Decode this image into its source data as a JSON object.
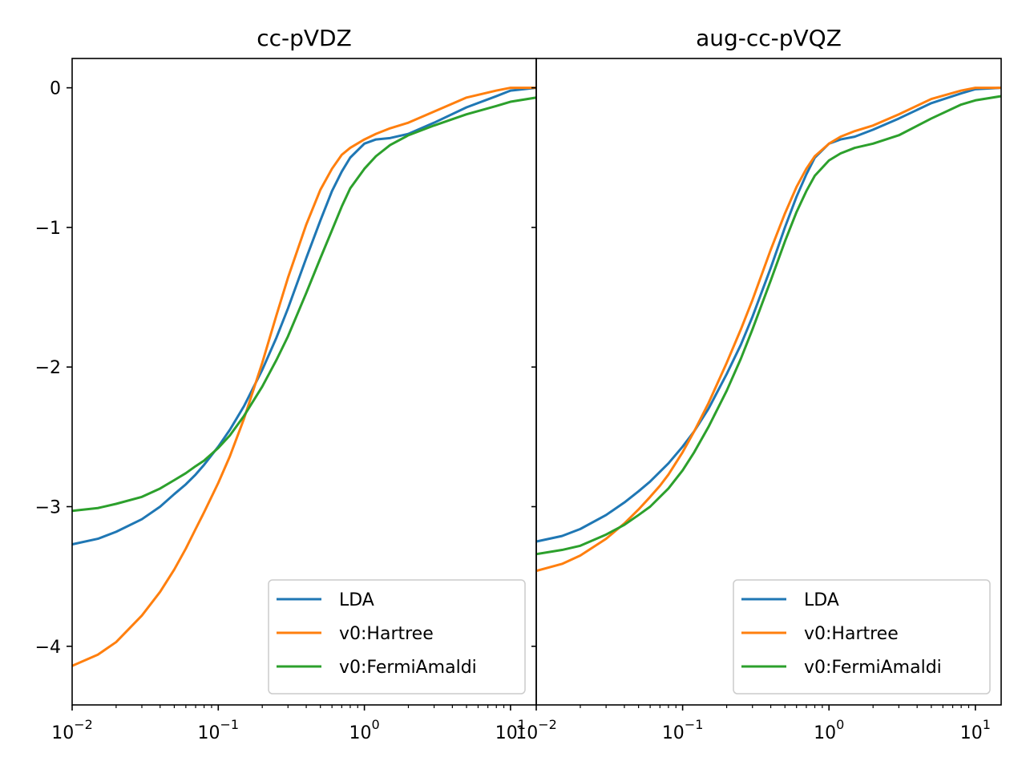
{
  "chart_data": [
    {
      "type": "line",
      "title": "cc-pVDZ",
      "xscale": "log",
      "xlim": [
        0.01,
        15
      ],
      "ylim": [
        -4.42,
        0.21
      ],
      "x_ticks": [
        {
          "value": 0.01,
          "base": "10",
          "exp": "−2"
        },
        {
          "value": 0.1,
          "base": "10",
          "exp": "−1"
        },
        {
          "value": 1,
          "base": "10",
          "exp": "0"
        },
        {
          "value": 10,
          "base": "10",
          "exp": "1"
        }
      ],
      "y_ticks": [
        {
          "value": 0,
          "label": "0"
        },
        {
          "value": -1,
          "label": "−1"
        },
        {
          "value": -2,
          "label": "−2"
        },
        {
          "value": -3,
          "label": "−3"
        },
        {
          "value": -4,
          "label": "−4"
        }
      ],
      "legend_position": "lower right",
      "series": [
        {
          "name": "LDA",
          "color": "#1f77b4",
          "x": [
            0.01,
            0.015,
            0.02,
            0.03,
            0.04,
            0.05,
            0.06,
            0.07,
            0.08,
            0.1,
            0.12,
            0.15,
            0.2,
            0.25,
            0.3,
            0.4,
            0.5,
            0.6,
            0.7,
            0.8,
            1.0,
            1.2,
            1.5,
            2.0,
            3.0,
            5.0,
            8.0,
            10.0,
            15.0
          ],
          "y": [
            -3.27,
            -3.23,
            -3.18,
            -3.09,
            -3.0,
            -2.91,
            -2.84,
            -2.77,
            -2.7,
            -2.57,
            -2.45,
            -2.28,
            -2.02,
            -1.79,
            -1.58,
            -1.22,
            -0.95,
            -0.74,
            -0.6,
            -0.5,
            -0.4,
            -0.37,
            -0.36,
            -0.33,
            -0.25,
            -0.14,
            -0.06,
            -0.02,
            0.0
          ]
        },
        {
          "name": "v0:Hartree",
          "color": "#ff7f0e",
          "x": [
            0.01,
            0.015,
            0.02,
            0.03,
            0.04,
            0.05,
            0.06,
            0.07,
            0.08,
            0.1,
            0.12,
            0.15,
            0.2,
            0.25,
            0.3,
            0.4,
            0.5,
            0.6,
            0.7,
            0.8,
            1.0,
            1.2,
            1.5,
            2.0,
            3.0,
            5.0,
            8.0,
            10.0,
            15.0
          ],
          "y": [
            -4.14,
            -4.06,
            -3.97,
            -3.78,
            -3.61,
            -3.45,
            -3.3,
            -3.16,
            -3.04,
            -2.83,
            -2.64,
            -2.37,
            -1.97,
            -1.63,
            -1.36,
            -0.98,
            -0.73,
            -0.58,
            -0.48,
            -0.43,
            -0.37,
            -0.33,
            -0.29,
            -0.25,
            -0.17,
            -0.07,
            -0.02,
            0.0,
            0.0
          ]
        },
        {
          "name": "v0:FermiAmaldi",
          "color": "#2ca02c",
          "x": [
            0.01,
            0.015,
            0.02,
            0.03,
            0.04,
            0.05,
            0.06,
            0.07,
            0.08,
            0.1,
            0.12,
            0.15,
            0.2,
            0.25,
            0.3,
            0.4,
            0.5,
            0.6,
            0.7,
            0.8,
            1.0,
            1.2,
            1.5,
            2.0,
            3.0,
            5.0,
            8.0,
            10.0,
            15.0
          ],
          "y": [
            -3.03,
            -3.01,
            -2.98,
            -2.93,
            -2.87,
            -2.81,
            -2.76,
            -2.71,
            -2.67,
            -2.58,
            -2.49,
            -2.35,
            -2.14,
            -1.95,
            -1.78,
            -1.47,
            -1.22,
            -1.02,
            -0.85,
            -0.72,
            -0.58,
            -0.49,
            -0.41,
            -0.34,
            -0.27,
            -0.19,
            -0.13,
            -0.1,
            -0.07
          ]
        }
      ]
    },
    {
      "type": "line",
      "title": "aug-cc-pVQZ",
      "xscale": "log",
      "xlim": [
        0.01,
        15
      ],
      "ylim": [
        -4.42,
        0.21
      ],
      "x_ticks": [
        {
          "value": 0.01,
          "base": "10",
          "exp": "−2"
        },
        {
          "value": 0.1,
          "base": "10",
          "exp": "−1"
        },
        {
          "value": 1,
          "base": "10",
          "exp": "0"
        },
        {
          "value": 10,
          "base": "10",
          "exp": "1"
        }
      ],
      "y_ticks": [
        {
          "value": 0,
          "label": ""
        },
        {
          "value": -1,
          "label": ""
        },
        {
          "value": -2,
          "label": ""
        },
        {
          "value": -3,
          "label": ""
        },
        {
          "value": -4,
          "label": ""
        }
      ],
      "legend_position": "lower right",
      "series": [
        {
          "name": "LDA",
          "color": "#1f77b4",
          "x": [
            0.01,
            0.015,
            0.02,
            0.03,
            0.04,
            0.05,
            0.06,
            0.07,
            0.08,
            0.1,
            0.12,
            0.15,
            0.2,
            0.25,
            0.3,
            0.4,
            0.5,
            0.6,
            0.7,
            0.8,
            1.0,
            1.2,
            1.5,
            2.0,
            3.0,
            5.0,
            8.0,
            10.0,
            15.0
          ],
          "y": [
            -3.25,
            -3.21,
            -3.16,
            -3.06,
            -2.97,
            -2.89,
            -2.82,
            -2.75,
            -2.69,
            -2.57,
            -2.46,
            -2.3,
            -2.05,
            -1.84,
            -1.64,
            -1.29,
            -1.0,
            -0.78,
            -0.62,
            -0.5,
            -0.4,
            -0.37,
            -0.35,
            -0.3,
            -0.22,
            -0.11,
            -0.04,
            -0.01,
            0.0
          ]
        },
        {
          "name": "v0:Hartree",
          "color": "#ff7f0e",
          "x": [
            0.01,
            0.015,
            0.02,
            0.03,
            0.04,
            0.05,
            0.06,
            0.07,
            0.08,
            0.1,
            0.12,
            0.15,
            0.2,
            0.25,
            0.3,
            0.4,
            0.5,
            0.6,
            0.7,
            0.8,
            1.0,
            1.2,
            1.5,
            2.0,
            3.0,
            5.0,
            8.0,
            10.0,
            15.0
          ],
          "y": [
            -3.46,
            -3.41,
            -3.35,
            -3.23,
            -3.12,
            -3.02,
            -2.93,
            -2.85,
            -2.77,
            -2.61,
            -2.46,
            -2.26,
            -1.97,
            -1.73,
            -1.52,
            -1.16,
            -0.9,
            -0.71,
            -0.58,
            -0.49,
            -0.4,
            -0.35,
            -0.31,
            -0.27,
            -0.19,
            -0.08,
            -0.02,
            0.0,
            0.0
          ]
        },
        {
          "name": "v0:FermiAmaldi",
          "color": "#2ca02c",
          "x": [
            0.01,
            0.015,
            0.02,
            0.03,
            0.04,
            0.05,
            0.06,
            0.07,
            0.08,
            0.1,
            0.12,
            0.15,
            0.2,
            0.25,
            0.3,
            0.4,
            0.5,
            0.6,
            0.7,
            0.8,
            1.0,
            1.2,
            1.5,
            2.0,
            3.0,
            5.0,
            8.0,
            10.0,
            15.0
          ],
          "y": [
            -3.34,
            -3.31,
            -3.28,
            -3.2,
            -3.13,
            -3.06,
            -3.0,
            -2.93,
            -2.87,
            -2.74,
            -2.61,
            -2.43,
            -2.17,
            -1.94,
            -1.73,
            -1.38,
            -1.1,
            -0.89,
            -0.74,
            -0.63,
            -0.52,
            -0.47,
            -0.43,
            -0.4,
            -0.34,
            -0.22,
            -0.12,
            -0.09,
            -0.06
          ]
        }
      ]
    }
  ]
}
